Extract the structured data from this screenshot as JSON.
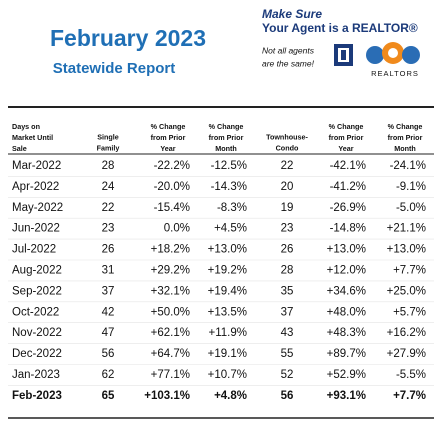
{
  "header": {
    "title": "February 2023",
    "subtitle": "Statewide Report",
    "tagline": [
      "Make Sure",
      "Your Agent is a REALTOR®"
    ],
    "note": [
      "Not all agents",
      "are the same!"
    ],
    "logo_text": "REALTORS"
  },
  "table": {
    "columns": [
      [
        "Days on",
        "Market Until",
        "Sale"
      ],
      [
        "Single",
        "Family"
      ],
      [
        "% Change",
        "from Prior",
        "Year"
      ],
      [
        "% Change",
        "from Prior",
        "Month"
      ],
      [
        "Townhouse-",
        "Condo"
      ],
      [
        "% Change",
        "from Prior",
        "Year"
      ],
      [
        "% Change",
        "from Prior",
        "Month"
      ]
    ],
    "rows": [
      [
        "Mar-2022",
        "28",
        "-22.2%",
        "-12.5%",
        "22",
        "-42.1%",
        "-24.1%"
      ],
      [
        "Apr-2022",
        "24",
        "-20.0%",
        "-14.3%",
        "20",
        "-41.2%",
        "-9.1%"
      ],
      [
        "May-2022",
        "22",
        "-15.4%",
        "-8.3%",
        "19",
        "-26.9%",
        "-5.0%"
      ],
      [
        "Jun-2022",
        "23",
        "0.0%",
        "+4.5%",
        "23",
        "-14.8%",
        "+21.1%"
      ],
      [
        "Jul-2022",
        "26",
        "+18.2%",
        "+13.0%",
        "26",
        "+13.0%",
        "+13.0%"
      ],
      [
        "Aug-2022",
        "31",
        "+29.2%",
        "+19.2%",
        "28",
        "+12.0%",
        "+7.7%"
      ],
      [
        "Sep-2022",
        "37",
        "+32.1%",
        "+19.4%",
        "35",
        "+34.6%",
        "+25.0%"
      ],
      [
        "Oct-2022",
        "42",
        "+50.0%",
        "+13.5%",
        "37",
        "+48.0%",
        "+5.7%"
      ],
      [
        "Nov-2022",
        "47",
        "+62.1%",
        "+11.9%",
        "43",
        "+48.3%",
        "+16.2%"
      ],
      [
        "Dec-2022",
        "56",
        "+64.7%",
        "+19.1%",
        "55",
        "+89.7%",
        "+27.9%"
      ],
      [
        "Jan-2023",
        "62",
        "+77.1%",
        "+10.7%",
        "52",
        "+52.9%",
        "-5.5%"
      ],
      [
        "Feb-2023",
        "65",
        "+103.1%",
        "+4.8%",
        "56",
        "+93.1%",
        "+7.7%"
      ]
    ]
  }
}
